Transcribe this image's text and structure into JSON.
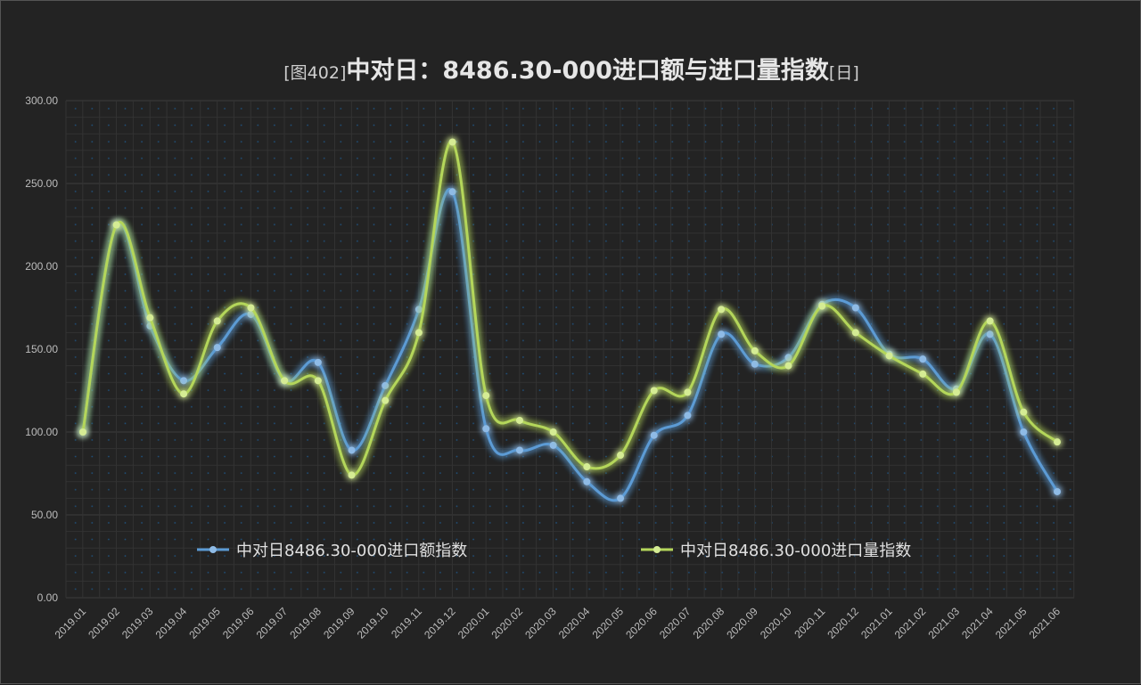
{
  "chart_data": {
    "type": "line",
    "title_prefix": "[图402]",
    "title_main": "中对日：8486.30-000进口额与进口量指数",
    "title_suffix": "[日]",
    "xlabel": "",
    "ylabel": "",
    "ylim": [
      0,
      300
    ],
    "yticks": [
      "0.00",
      "50.00",
      "100.00",
      "150.00",
      "200.00",
      "250.00",
      "300.00"
    ],
    "grid": true,
    "legend_position": "bottom-inside",
    "categories": [
      "2019.01",
      "2019.02",
      "2019.03",
      "2019.04",
      "2019.05",
      "2019.06",
      "2019.07",
      "2019.08",
      "2019.09",
      "2019.10",
      "2019.11",
      "2019.12",
      "2020.01",
      "2020.02",
      "2020.03",
      "2020.04",
      "2020.05",
      "2020.06",
      "2020.07",
      "2020.08",
      "2020.09",
      "2020.10",
      "2020.11",
      "2020.12",
      "2021.01",
      "2021.02",
      "2021.03",
      "2021.04",
      "2021.05",
      "2021.06"
    ],
    "series": [
      {
        "name": "中对日8486.30-000进口额指数",
        "color": "#5b9bd5",
        "values": [
          100,
          225,
          164,
          131,
          151,
          171,
          131,
          142,
          89,
          128,
          174,
          245,
          102,
          89,
          92,
          70,
          60,
          98,
          110,
          159,
          141,
          145,
          177,
          175,
          147,
          144,
          126,
          159,
          100,
          64
        ]
      },
      {
        "name": "中对日8486.30-000进口量指数",
        "color": "#b4d65a",
        "values": [
          100,
          225,
          169,
          123,
          167,
          175,
          131,
          131,
          74,
          119,
          160,
          275,
          122,
          107,
          100,
          79,
          86,
          125,
          124,
          174,
          149,
          140,
          176,
          160,
          146,
          135,
          124,
          167,
          112,
          94
        ]
      }
    ]
  }
}
